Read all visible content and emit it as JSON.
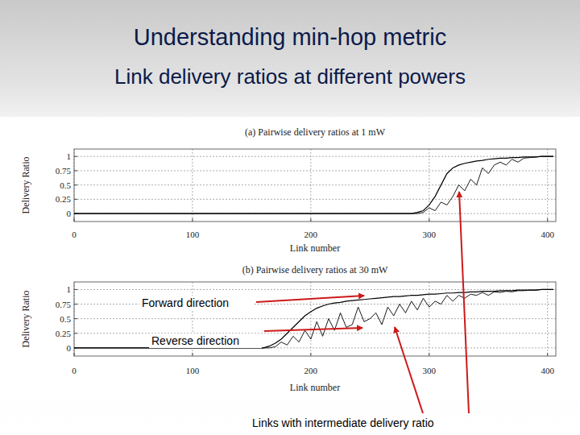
{
  "header": {
    "title": "Understanding min-hop metric",
    "subtitle": "Link delivery ratios at different powers"
  },
  "annotations": {
    "forward": "Forward direction",
    "reverse": "Reverse direction",
    "intermediate": "Links with intermediate delivery ratio"
  },
  "chart_data": [
    {
      "type": "line",
      "title": "(a) Pairwise delivery ratios at 1 mW",
      "x_label": "Link number",
      "y_label": "Delivery Ratio",
      "xlim": [
        0,
        407
      ],
      "xticks": [
        0,
        100,
        200,
        300,
        400
      ],
      "ylim": [
        -0.14,
        1.13
      ],
      "yticks": [
        0,
        0.25,
        0.5,
        0.75,
        1
      ],
      "grid": true,
      "x": [
        0,
        5,
        10,
        15,
        20,
        25,
        30,
        35,
        40,
        45,
        50,
        55,
        60,
        65,
        70,
        75,
        80,
        85,
        90,
        95,
        100,
        105,
        110,
        115,
        120,
        125,
        130,
        135,
        140,
        145,
        150,
        155,
        160,
        165,
        170,
        175,
        180,
        185,
        190,
        195,
        200,
        205,
        210,
        215,
        220,
        225,
        230,
        235,
        240,
        245,
        250,
        255,
        260,
        265,
        270,
        275,
        280,
        285,
        290,
        295,
        300,
        305,
        310,
        315,
        320,
        325,
        330,
        335,
        340,
        345,
        350,
        355,
        360,
        365,
        370,
        375,
        380,
        385,
        390,
        395,
        400,
        405
      ],
      "series": [
        {
          "color": "#000000",
          "line_style": "solid",
          "values": [
            0,
            0,
            0,
            0,
            0,
            0,
            0,
            0,
            0,
            0,
            0,
            0,
            0,
            0,
            0,
            0,
            0,
            0,
            0,
            0,
            0,
            0,
            0,
            0,
            0,
            0,
            0,
            0,
            0,
            0,
            0,
            0,
            0,
            0,
            0,
            0,
            0,
            0,
            0,
            0,
            0,
            0,
            0,
            0,
            0,
            0,
            0,
            0,
            0,
            0,
            0,
            0,
            0,
            0,
            0,
            0,
            0,
            0,
            0.02,
            0.05,
            0.15,
            0.3,
            0.5,
            0.7,
            0.8,
            0.85,
            0.88,
            0.9,
            0.92,
            0.93,
            0.95,
            0.96,
            0.97,
            0.97,
            0.98,
            0.98,
            0.99,
            0.99,
            0.99,
            1,
            1,
            1
          ]
        },
        {
          "color": "#000000",
          "line_style": "solid",
          "values": [
            0,
            0,
            0,
            0,
            0,
            0,
            0,
            0,
            0,
            0,
            0,
            0,
            0,
            0,
            0,
            0,
            0,
            0,
            0,
            0,
            0,
            0,
            0,
            0,
            0,
            0,
            0,
            0,
            0,
            0,
            0,
            0,
            0,
            0,
            0,
            0,
            0,
            0,
            0,
            0,
            0,
            0,
            0,
            0,
            0,
            0,
            0,
            0,
            0,
            0,
            0,
            0,
            0,
            0,
            0,
            0,
            0,
            0,
            0,
            0.02,
            0.1,
            0.05,
            0.2,
            0.15,
            0.3,
            0.5,
            0.4,
            0.6,
            0.5,
            0.8,
            0.7,
            0.85,
            0.9,
            0.85,
            0.95,
            0.9,
            0.97,
            0.98,
            0.99,
            1,
            1,
            1
          ]
        }
      ]
    },
    {
      "type": "line",
      "title": "(b) Pairwise delivery ratios at 30 mW",
      "x_label": "Link number",
      "y_label": "Delivery Ratio",
      "xlim": [
        0,
        407
      ],
      "xticks": [
        0,
        100,
        200,
        300,
        400
      ],
      "ylim": [
        -0.14,
        1.13
      ],
      "yticks": [
        0,
        0.25,
        0.5,
        0.75,
        1
      ],
      "grid": true,
      "x": [
        0,
        5,
        10,
        15,
        20,
        25,
        30,
        35,
        40,
        45,
        50,
        55,
        60,
        65,
        70,
        75,
        80,
        85,
        90,
        95,
        100,
        105,
        110,
        115,
        120,
        125,
        130,
        135,
        140,
        145,
        150,
        155,
        160,
        165,
        170,
        175,
        180,
        185,
        190,
        195,
        200,
        205,
        210,
        215,
        220,
        225,
        230,
        235,
        240,
        245,
        250,
        255,
        260,
        265,
        270,
        275,
        280,
        285,
        290,
        295,
        300,
        305,
        310,
        315,
        320,
        325,
        330,
        335,
        340,
        345,
        350,
        355,
        360,
        365,
        370,
        375,
        380,
        385,
        390,
        395,
        400,
        405
      ],
      "series": [
        {
          "color": "#000000",
          "line_style": "solid",
          "values": [
            0,
            0,
            0,
            0,
            0,
            0,
            0,
            0,
            0,
            0,
            0,
            0,
            0,
            0,
            0,
            0,
            0,
            0,
            0,
            0,
            0,
            0,
            0,
            0,
            0,
            0,
            0,
            0,
            0,
            0,
            0,
            0,
            0,
            0.03,
            0.08,
            0.15,
            0.25,
            0.35,
            0.45,
            0.55,
            0.62,
            0.68,
            0.72,
            0.75,
            0.77,
            0.78,
            0.8,
            0.81,
            0.82,
            0.83,
            0.84,
            0.85,
            0.86,
            0.87,
            0.88,
            0.88,
            0.89,
            0.9,
            0.9,
            0.91,
            0.92,
            0.92,
            0.93,
            0.94,
            0.94,
            0.95,
            0.95,
            0.96,
            0.96,
            0.97,
            0.97,
            0.97,
            0.98,
            0.98,
            0.98,
            0.99,
            0.99,
            0.99,
            0.99,
            1,
            1,
            1
          ]
        },
        {
          "color": "#000000",
          "line_style": "solid",
          "values": [
            0,
            0,
            0,
            0,
            0,
            0,
            0,
            0,
            0,
            0,
            0,
            0,
            0,
            0,
            0,
            0,
            0,
            0,
            0,
            0,
            0,
            0,
            0,
            0,
            0,
            0,
            0,
            0,
            0,
            0,
            0,
            0,
            0,
            0,
            0.02,
            0.1,
            0.05,
            0.2,
            0.1,
            0.3,
            0.15,
            0.45,
            0.2,
            0.5,
            0.3,
            0.6,
            0.35,
            0.4,
            0.7,
            0.45,
            0.5,
            0.6,
            0.4,
            0.7,
            0.55,
            0.75,
            0.6,
            0.8,
            0.65,
            0.85,
            0.7,
            0.8,
            0.75,
            0.9,
            0.8,
            0.9,
            0.85,
            0.92,
            0.9,
            0.95,
            0.9,
            0.96,
            0.95,
            0.97,
            0.96,
            0.98,
            0.98,
            0.99,
            0.99,
            1,
            1,
            1
          ]
        }
      ]
    }
  ]
}
